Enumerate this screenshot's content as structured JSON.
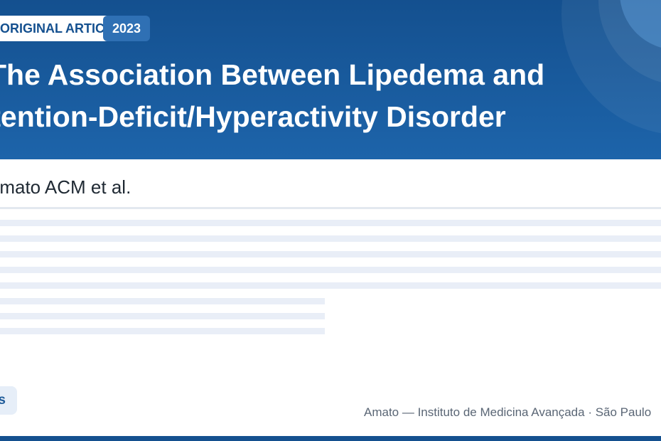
{
  "header": {
    "article_type": "ORIGINAL ARTICLE",
    "year": "2023",
    "title_line1": "The Association Between Lipedema and",
    "title_line2": "Attention-Deficit/Hyperactivity Disorder"
  },
  "authors": "Amato ACM et al.",
  "footer": {
    "chip_label": "s",
    "institution": "Amato — Instituto de Medicina Avançada · São Paulo"
  },
  "colors": {
    "brand_primary": "#14508f",
    "brand_accent": "#2f70b4",
    "placeholder_line": "#e9eef7"
  }
}
